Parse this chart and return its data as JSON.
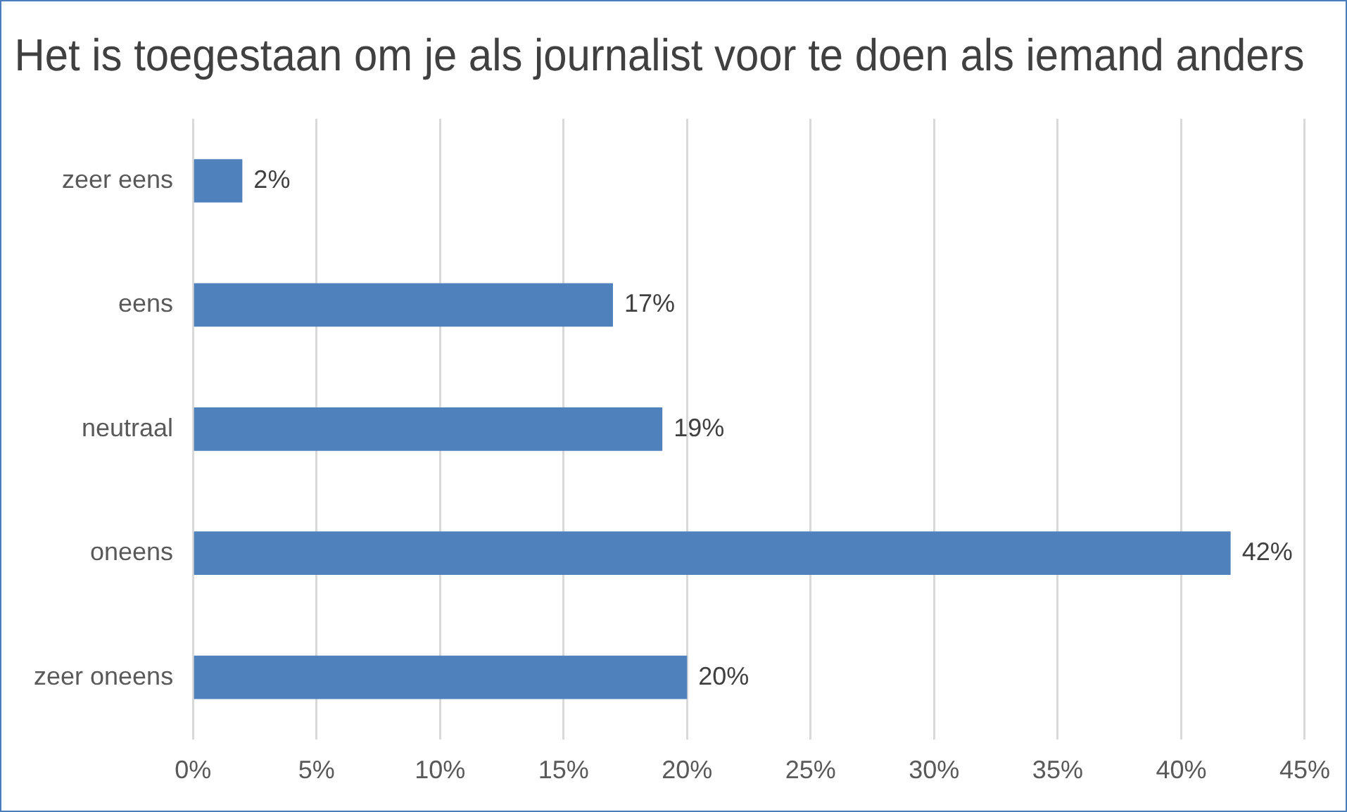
{
  "chart_data": {
    "type": "bar",
    "orientation": "horizontal",
    "title": "Het is toegestaan om je als journalist voor te doen als iemand anders",
    "categories": [
      "zeer eens",
      "eens",
      "neutraal",
      "oneens",
      "zeer oneens"
    ],
    "values": [
      2,
      17,
      19,
      42,
      20
    ],
    "value_labels": [
      "2%",
      "17%",
      "19%",
      "42%",
      "20%"
    ],
    "color": "#4f81bd",
    "xlim": [
      0,
      45
    ],
    "xticks": [
      {
        "value": 0,
        "label": "0%"
      },
      {
        "value": 5,
        "label": "5%"
      },
      {
        "value": 10,
        "label": "10%"
      },
      {
        "value": 15,
        "label": "15%"
      },
      {
        "value": 20,
        "label": "20%"
      },
      {
        "value": 25,
        "label": "25%"
      },
      {
        "value": 30,
        "label": "30%"
      },
      {
        "value": 35,
        "label": "35%"
      },
      {
        "value": 40,
        "label": "40%"
      },
      {
        "value": 45,
        "label": "45%"
      }
    ],
    "grid": "x",
    "legend": false
  }
}
